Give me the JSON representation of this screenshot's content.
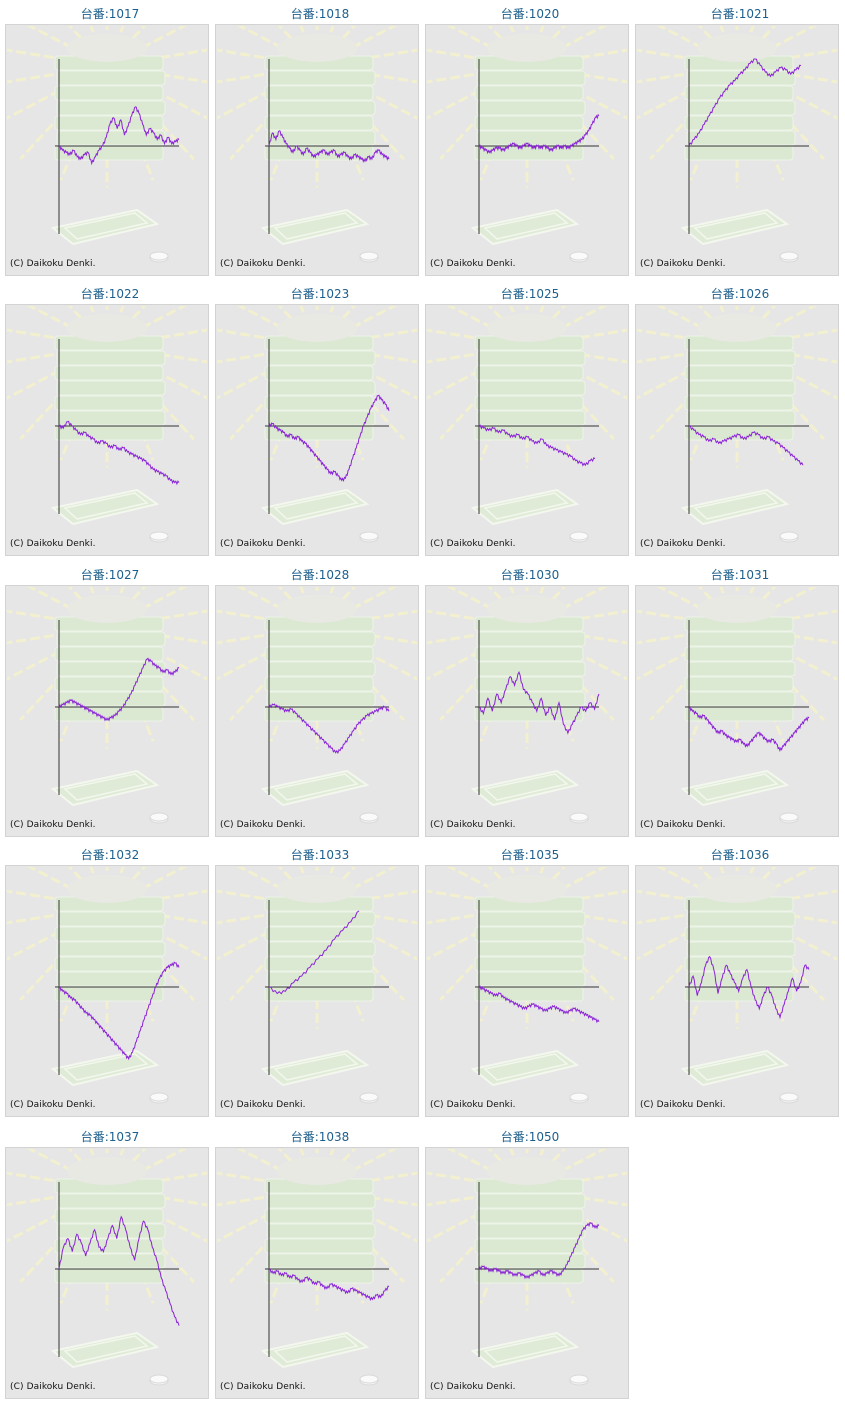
{
  "machine_label_prefix": "台番:",
  "copyright": "(C) Daikoku Denki.",
  "line_color": "#8a22d6",
  "machines": [
    {
      "no": "1017",
      "y": [
        0,
        -2,
        -3,
        -4,
        -2,
        -5,
        -6,
        -4,
        -3,
        -8,
        -5,
        -2,
        0,
        4,
        10,
        13,
        8,
        12,
        5,
        9,
        14,
        18,
        15,
        10,
        5,
        8,
        6,
        3,
        5,
        1,
        4,
        1,
        2,
        3
      ]
    },
    {
      "no": "1018",
      "y": [
        0,
        6,
        3,
        7,
        4,
        1,
        -1,
        -3,
        0,
        -2,
        -4,
        -1,
        -3,
        -5,
        -4,
        -3,
        -2,
        -4,
        -3,
        -2,
        -5,
        -4,
        -3,
        -5,
        -6,
        -4,
        -5,
        -6,
        -7,
        -5,
        -6,
        -3,
        -2,
        -4,
        -5,
        -6
      ]
    },
    {
      "no": "1020",
      "y": [
        0,
        -1,
        -2,
        -3,
        -2,
        -1,
        -1,
        -2,
        -1,
        0,
        1,
        0,
        -1,
        0,
        1,
        0,
        -1,
        0,
        -1,
        0,
        -1,
        -2,
        -1,
        0,
        -1,
        0,
        -1,
        0,
        1,
        2,
        3,
        5,
        7,
        10,
        13,
        14
      ]
    },
    {
      "no": "1021",
      "y": [
        0,
        3,
        6,
        10,
        14,
        18,
        22,
        25,
        28,
        30,
        33,
        35,
        38,
        40,
        37,
        34,
        32,
        34,
        36,
        35,
        33,
        35,
        37
      ]
    },
    {
      "no": "1022",
      "y": [
        0,
        -1,
        2,
        0,
        -2,
        -4,
        -3,
        -5,
        -6,
        -8,
        -7,
        -8,
        -10,
        -9,
        -11,
        -10,
        -12,
        -13,
        -14,
        -15,
        -16,
        -18,
        -20,
        -21,
        -22,
        -23,
        -25,
        -26,
        -26
      ]
    },
    {
      "no": "1023",
      "y": [
        0,
        1,
        -1,
        -2,
        -3,
        -5,
        -4,
        -6,
        -5,
        -7,
        -8,
        -10,
        -12,
        -14,
        -16,
        -18,
        -20,
        -22,
        -21,
        -23,
        -25,
        -24,
        -20,
        -15,
        -10,
        -5,
        0,
        4,
        8,
        11,
        14,
        12,
        10,
        7
      ]
    },
    {
      "no": "1025",
      "y": [
        0,
        -1,
        -2,
        -1,
        -3,
        -2,
        -4,
        -5,
        -4,
        -6,
        -5,
        -7,
        -8,
        -6,
        -9,
        -10,
        -11,
        -12,
        -13,
        -14,
        -16,
        -17,
        -18,
        -16,
        -15
      ]
    },
    {
      "no": "1026",
      "y": [
        0,
        -2,
        -4,
        -5,
        -7,
        -6,
        -8,
        -7,
        -6,
        -5,
        -4,
        -6,
        -5,
        -3,
        -4,
        -6,
        -5,
        -7,
        -8,
        -10,
        -12,
        -14,
        -16,
        -18
      ]
    },
    {
      "no": "1027",
      "y": [
        0,
        1,
        2,
        3,
        2,
        1,
        0,
        -1,
        -2,
        -3,
        -4,
        -5,
        -6,
        -5,
        -4,
        -2,
        0,
        3,
        6,
        10,
        14,
        18,
        22,
        21,
        19,
        18,
        16,
        17,
        15,
        16,
        18
      ]
    },
    {
      "no": "1028",
      "y": [
        0,
        1,
        0,
        -1,
        -2,
        -1,
        -3,
        -5,
        -7,
        -9,
        -11,
        -13,
        -15,
        -17,
        -19,
        -21,
        -20,
        -17,
        -14,
        -11,
        -8,
        -6,
        -4,
        -3,
        -2,
        -1,
        0,
        -2
      ]
    },
    {
      "no": "1030",
      "y": [
        0,
        -3,
        4,
        -2,
        6,
        2,
        8,
        14,
        10,
        16,
        8,
        6,
        2,
        -2,
        4,
        -4,
        0,
        -6,
        2,
        -8,
        -12,
        -8,
        -4,
        0,
        -2,
        2,
        -1,
        6
      ]
    },
    {
      "no": "1031",
      "y": [
        0,
        -2,
        -3,
        -5,
        -4,
        -6,
        -8,
        -10,
        -12,
        -11,
        -13,
        -14,
        -15,
        -16,
        -15,
        -17,
        -18,
        -16,
        -14,
        -12,
        -13,
        -15,
        -16,
        -15,
        -17,
        -20,
        -18,
        -16,
        -14,
        -12,
        -10,
        -8,
        -6,
        -5
      ]
    },
    {
      "no": "1032",
      "y": [
        0,
        -2,
        -3,
        -5,
        -6,
        -8,
        -10,
        -12,
        -13,
        -15,
        -17,
        -19,
        -21,
        -23,
        -25,
        -27,
        -29,
        -31,
        -33,
        -30,
        -25,
        -20,
        -15,
        -10,
        -5,
        0,
        4,
        7,
        9,
        10,
        11,
        9
      ]
    },
    {
      "no": "1033",
      "y": [
        0,
        -3,
        -2,
        2,
        5,
        9,
        13,
        17,
        22,
        26,
        30,
        35
      ]
    },
    {
      "no": "1035",
      "y": [
        0,
        -1,
        -2,
        -3,
        -4,
        -3,
        -5,
        -6,
        -7,
        -8,
        -9,
        -10,
        -9,
        -8,
        -9,
        -10,
        -11,
        -10,
        -9,
        -10,
        -11,
        -12,
        -11,
        -10,
        -11,
        -12,
        -13,
        -14,
        -15,
        -16
      ]
    },
    {
      "no": "1036",
      "y": [
        0,
        5,
        -4,
        2,
        10,
        14,
        8,
        -3,
        4,
        10,
        6,
        2,
        -2,
        4,
        8,
        0,
        -6,
        -10,
        -4,
        0,
        -4,
        -10,
        -14,
        -8,
        -2,
        4,
        -2,
        2,
        10,
        8
      ]
    },
    {
      "no": "1037",
      "y": [
        0,
        10,
        14,
        8,
        16,
        12,
        6,
        12,
        18,
        10,
        8,
        14,
        20,
        14,
        24,
        18,
        10,
        4,
        14,
        22,
        18,
        10,
        4,
        -4,
        -10,
        -16,
        -22,
        -26
      ]
    },
    {
      "no": "1038",
      "y": [
        0,
        -2,
        -1,
        -3,
        -2,
        -4,
        -3,
        -5,
        -6,
        -4,
        -5,
        -7,
        -6,
        -8,
        -9,
        -7,
        -8,
        -9,
        -10,
        -11,
        -9,
        -10,
        -11,
        -12,
        -13,
        -14,
        -12,
        -13,
        -10,
        -8
      ]
    },
    {
      "no": "1050",
      "y": [
        0,
        1,
        0,
        -1,
        0,
        -1,
        -2,
        -1,
        -2,
        -3,
        -2,
        -3,
        -4,
        -3,
        -2,
        -1,
        -3,
        -2,
        -1,
        -2,
        -3,
        -1,
        2,
        6,
        10,
        14,
        18,
        20,
        21,
        19,
        20
      ]
    }
  ]
}
